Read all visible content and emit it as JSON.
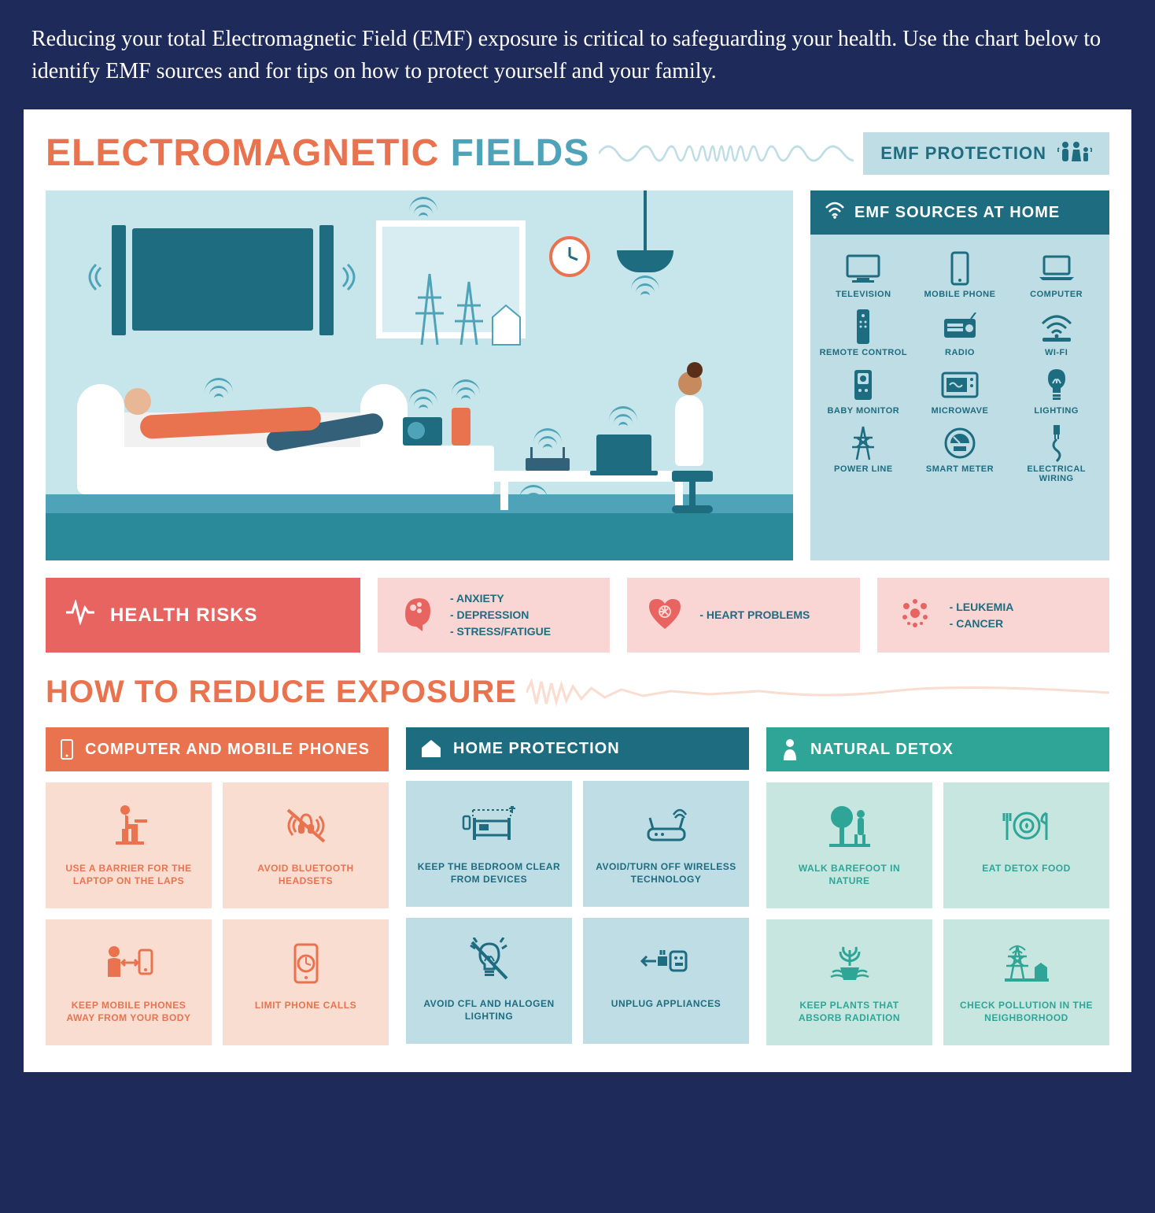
{
  "intro": "Reducing your total Electromagnetic Field (EMF) exposure is critical to safeguarding your health. Use the chart below to identify EMF sources and for tips on how to protect yourself and your family.",
  "colors": {
    "page_bg": "#1e2a5a",
    "panel_bg": "#ffffff",
    "orange": "#e9734f",
    "teal": "#4fa3b8",
    "teal_dark": "#1e6c80",
    "teal_pale": "#bedde4",
    "green": "#2fa598",
    "green_pale": "#c6e6df",
    "red": "#e86461",
    "red_pale": "#f9d6d4",
    "orange_pale": "#f9ddd0",
    "scene_bg": "#c7e6ec"
  },
  "header": {
    "title_word1": "ELECTROMAGNETIC",
    "title_word2": "FIELDS",
    "badge": "EMF PROTECTION"
  },
  "sources": {
    "title": "EMF SOURCES AT HOME",
    "items": [
      {
        "label": "TELEVISION",
        "icon": "tv"
      },
      {
        "label": "MOBILE PHONE",
        "icon": "phone"
      },
      {
        "label": "COMPUTER",
        "icon": "laptop"
      },
      {
        "label": "REMOTE CONTROL",
        "icon": "remote"
      },
      {
        "label": "RADIO",
        "icon": "radio"
      },
      {
        "label": "WI-FI",
        "icon": "wifi"
      },
      {
        "label": "BABY MONITOR",
        "icon": "monitor"
      },
      {
        "label": "MICROWAVE",
        "icon": "microwave"
      },
      {
        "label": "LIGHTING",
        "icon": "bulb"
      },
      {
        "label": "POWER LINE",
        "icon": "pylon"
      },
      {
        "label": "SMART METER",
        "icon": "meter"
      },
      {
        "label": "ELECTRICAL WIRING",
        "icon": "wire"
      }
    ]
  },
  "risks": {
    "title": "HEALTH RISKS",
    "cards": [
      {
        "icon": "brain",
        "lines": [
          "- ANXIETY",
          "- DEPRESSION",
          "- STRESS/FATIGUE"
        ]
      },
      {
        "icon": "heart",
        "lines": [
          "- HEART PROBLEMS"
        ]
      },
      {
        "icon": "cells",
        "lines": [
          "- LEUKEMIA",
          "- CANCER"
        ]
      }
    ]
  },
  "reduce_title": "HOW TO REDUCE EXPOSURE",
  "columns": [
    {
      "key": "c1",
      "title": "COMPUTER AND MOBILE PHONES",
      "icon": "phone",
      "tips": [
        {
          "icon": "sitting",
          "label": "USE A BARRIER FOR THE LAPTOP ON THE LAPS"
        },
        {
          "icon": "no-headset",
          "label": "AVOID BLUETOOTH HEADSETS"
        },
        {
          "icon": "distance",
          "label": "KEEP MOBILE PHONES AWAY FROM YOUR BODY"
        },
        {
          "icon": "timer",
          "label": "LIMIT PHONE CALLS"
        }
      ]
    },
    {
      "key": "c2",
      "title": "HOME PROTECTION",
      "icon": "house",
      "tips": [
        {
          "icon": "bed",
          "label": "KEEP THE BEDROOM CLEAR FROM DEVICES"
        },
        {
          "icon": "router",
          "label": "AVOID/TURN OFF WIRELESS TECHNOLOGY"
        },
        {
          "icon": "no-bulb",
          "label": "AVOID CFL AND HALOGEN LIGHTING"
        },
        {
          "icon": "plug",
          "label": "UNPLUG APPLIANCES"
        }
      ]
    },
    {
      "key": "c3",
      "title": "NATURAL DETOX",
      "icon": "person",
      "tips": [
        {
          "icon": "tree",
          "label": "WALK BAREFOOT IN NATURE"
        },
        {
          "icon": "plate",
          "label": "EAT DETOX FOOD"
        },
        {
          "icon": "plant",
          "label": "KEEP PLANTS THAT ABSORB RADIATION"
        },
        {
          "icon": "pylon2",
          "label": "CHECK POLLUTION IN THE NEIGHBORHOOD"
        }
      ]
    }
  ]
}
